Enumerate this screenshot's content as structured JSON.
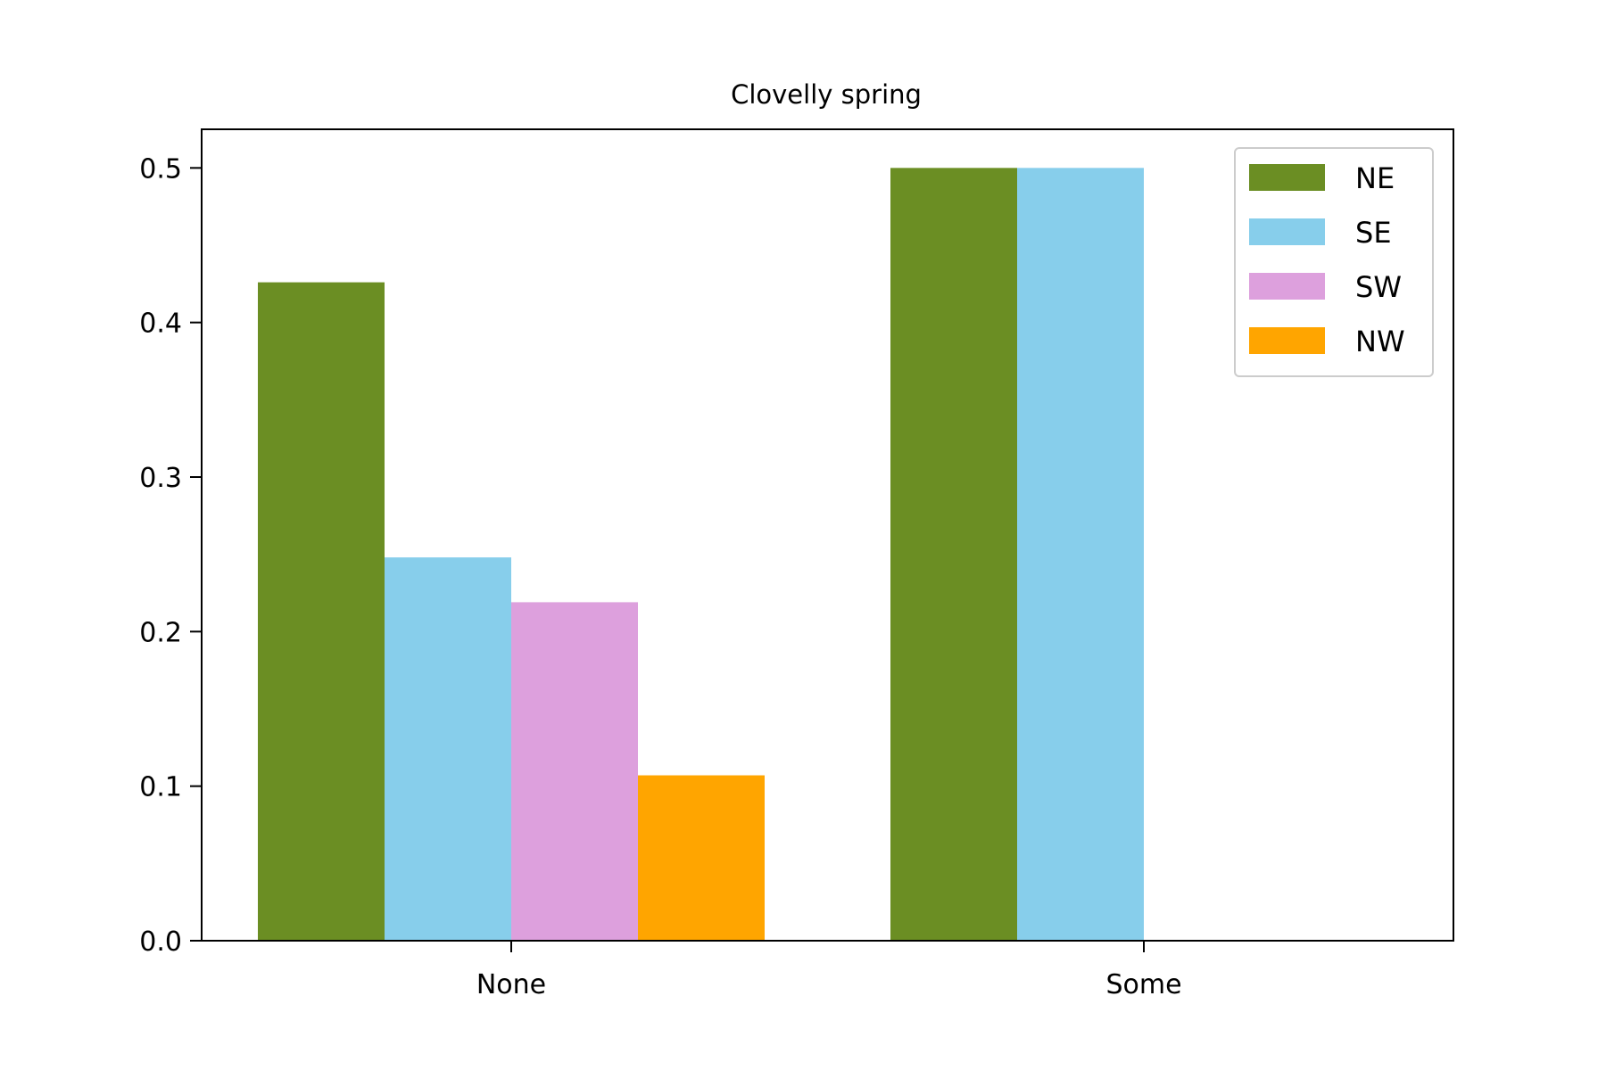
{
  "chart_data": {
    "type": "bar",
    "title": "Clovelly spring",
    "xlabel": "",
    "ylabel": "",
    "categories": [
      "None",
      "Some"
    ],
    "series": [
      {
        "name": "NE",
        "color": "#6b8e23",
        "values": [
          0.426,
          0.5
        ]
      },
      {
        "name": "SE",
        "color": "#87ceeb",
        "values": [
          0.248,
          0.5
        ]
      },
      {
        "name": "SW",
        "color": "#dda0dd",
        "values": [
          0.219,
          0
        ]
      },
      {
        "name": "NW",
        "color": "#ffa500",
        "values": [
          0.107,
          0
        ]
      }
    ],
    "ylim": [
      0,
      0.525
    ],
    "yticks": [
      0.0,
      0.1,
      0.2,
      0.3,
      0.4,
      0.5
    ],
    "ytick_labels": [
      "0.0",
      "0.1",
      "0.2",
      "0.3",
      "0.4",
      "0.5"
    ],
    "grid": false,
    "legend_position": "top-right"
  }
}
